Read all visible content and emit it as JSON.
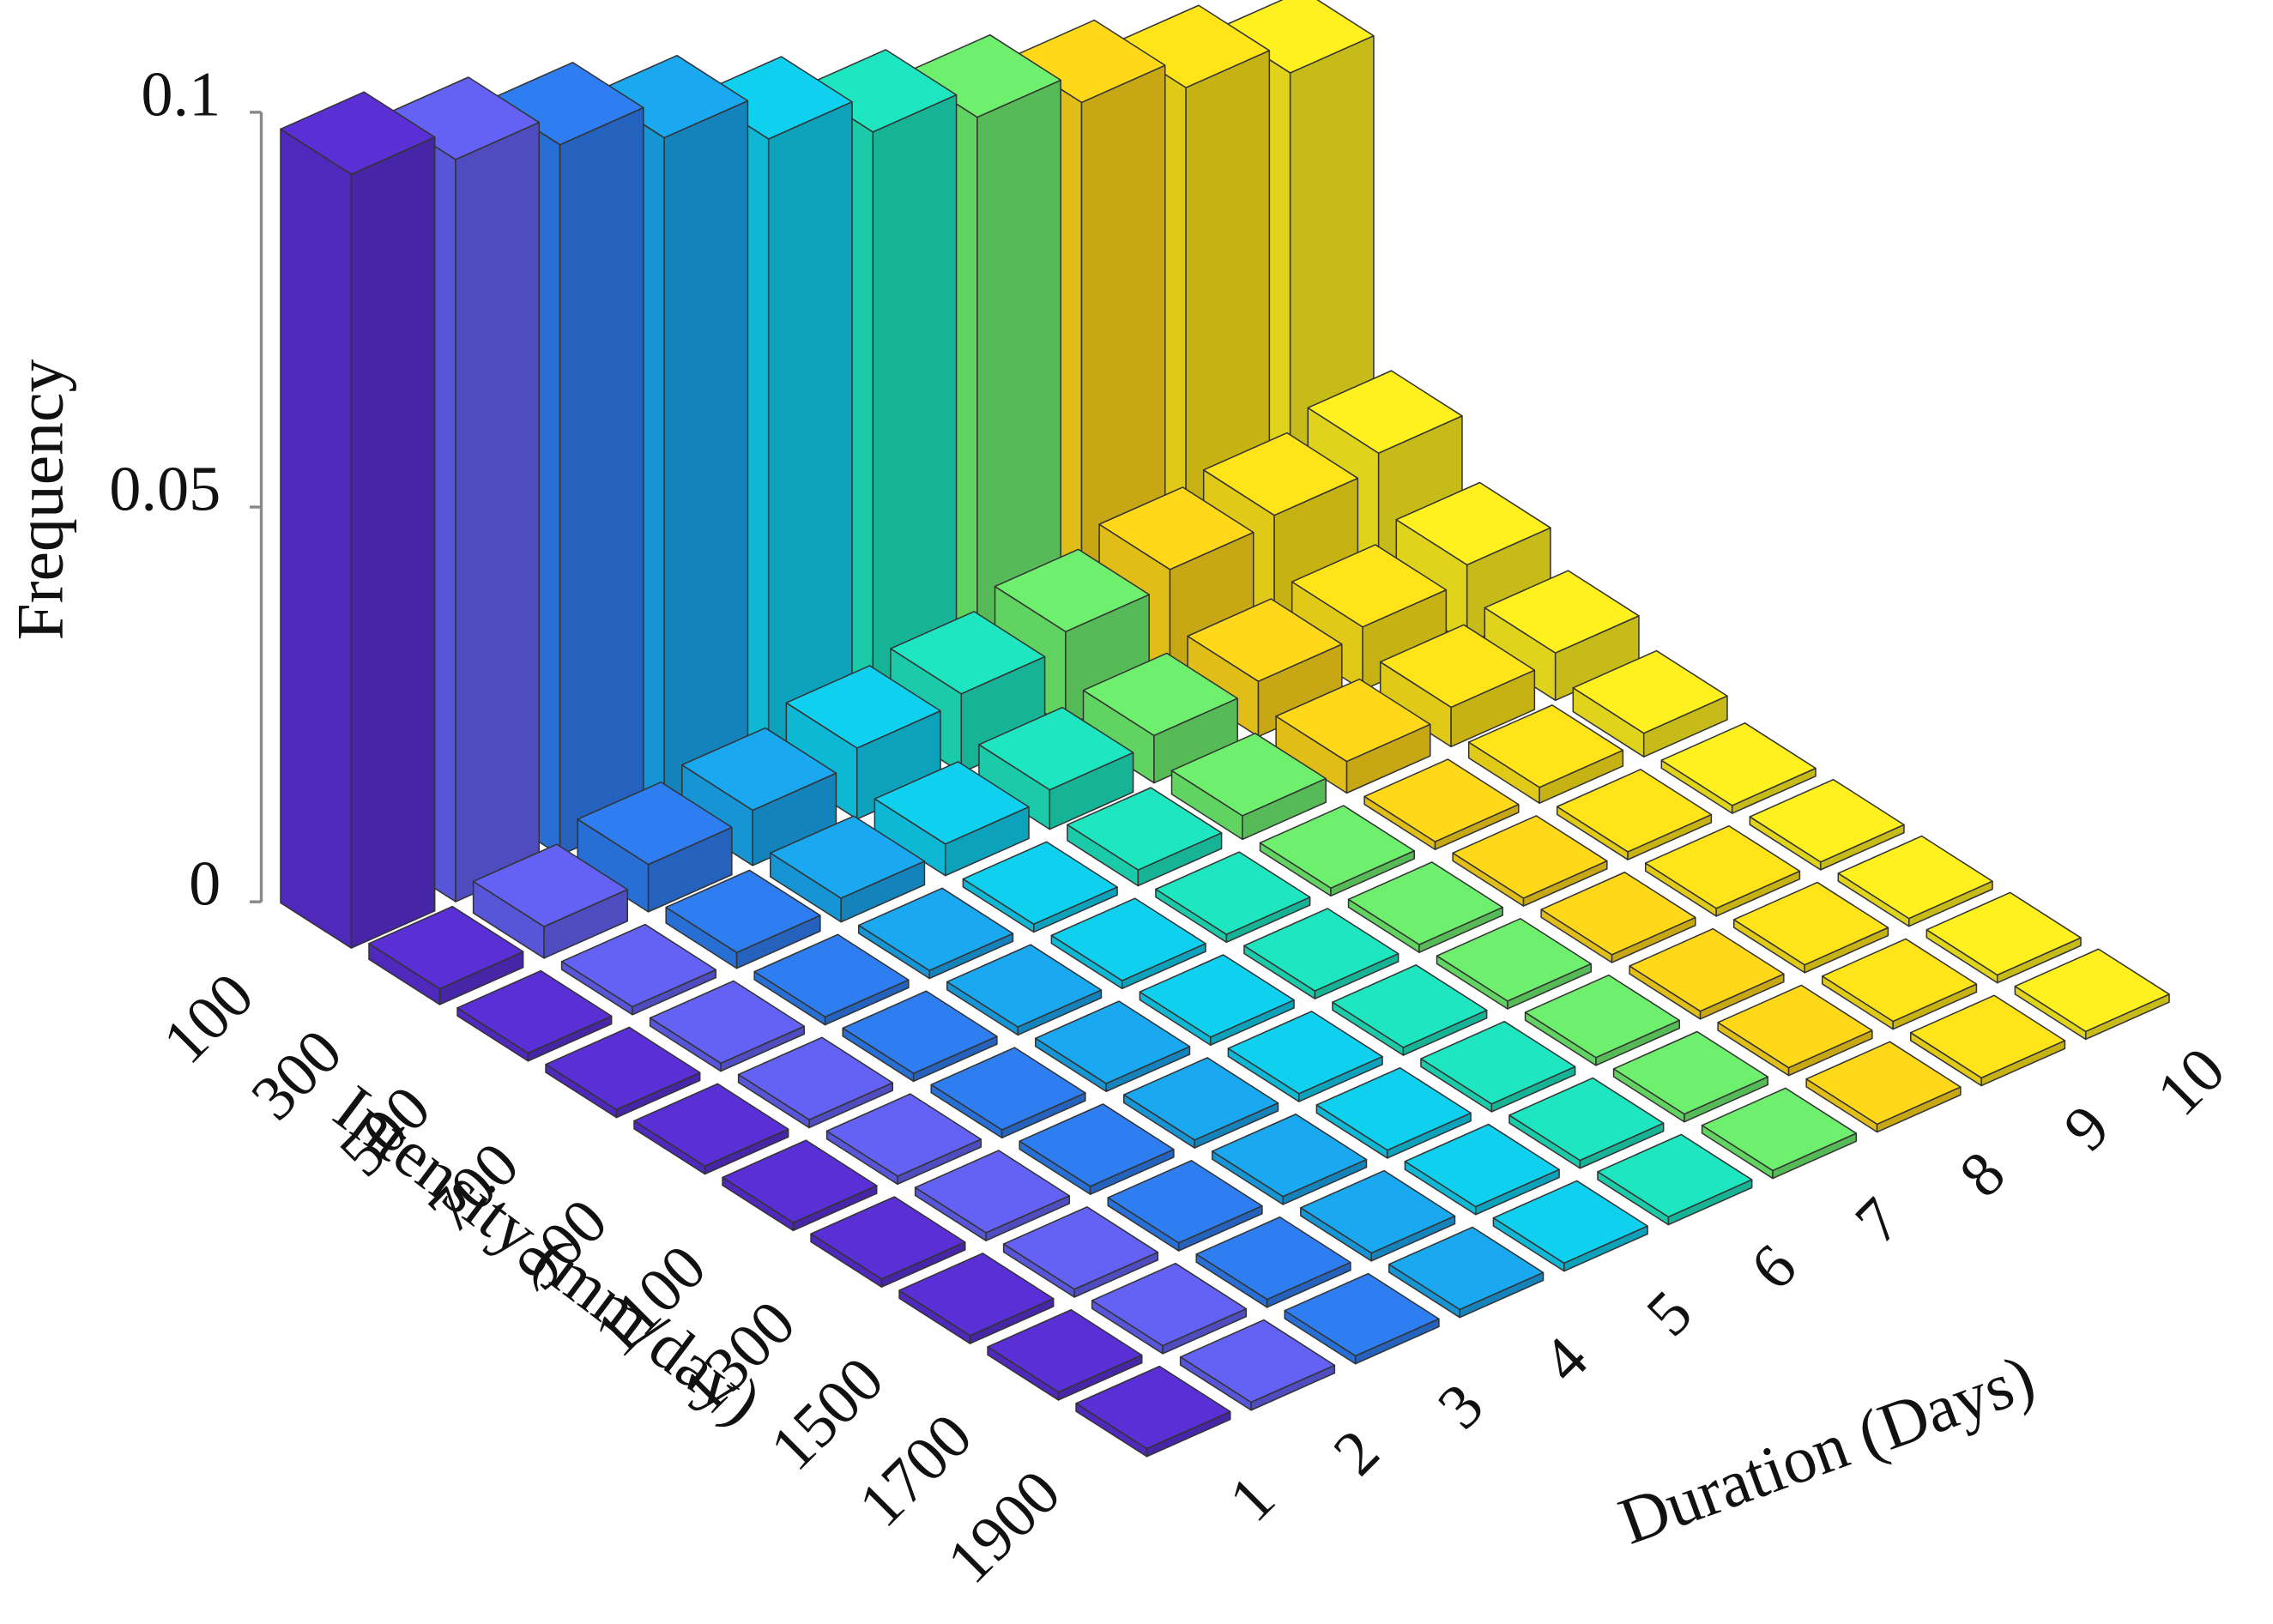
{
  "chart_data": {
    "type": "bar3d",
    "x_label": "Duration (Days)",
    "y_label": "Intensity (mm/day)",
    "z_label": "Frequency",
    "x_categories": [
      "1",
      "2",
      "3",
      "4",
      "5",
      "6",
      "7",
      "8",
      "9",
      "10"
    ],
    "y_categories": [
      "100",
      "300",
      "500",
      "700",
      "900",
      "1100",
      "1300",
      "1500",
      "1700",
      "1900"
    ],
    "colors": [
      "#5a2fd6",
      "#6462f5",
      "#2e7ef2",
      "#1aa8f0",
      "#10d0f0",
      "#1de6c0",
      "#6ef06e",
      "#ffd81a",
      "#ffe41a",
      "#fff020"
    ],
    "values": [
      [
        0.098,
        0.094,
        0.09,
        0.085,
        0.079,
        0.074,
        0.07,
        0.066,
        0.062,
        0.058
      ],
      [
        0.002,
        0.004,
        0.006,
        0.007,
        0.009,
        0.01,
        0.012,
        0.014,
        0.015,
        0.017
      ],
      [
        0.001,
        0.001,
        0.002,
        0.003,
        0.004,
        0.005,
        0.006,
        0.007,
        0.008,
        0.01
      ],
      [
        0.001,
        0.001,
        0.001,
        0.001,
        0.001,
        0.002,
        0.003,
        0.004,
        0.005,
        0.006
      ],
      [
        0.001,
        0.001,
        0.001,
        0.001,
        0.001,
        0.001,
        0.001,
        0.001,
        0.002,
        0.003
      ],
      [
        0.001,
        0.001,
        0.001,
        0.001,
        0.001,
        0.001,
        0.001,
        0.001,
        0.001,
        0.001
      ],
      [
        0.001,
        0.001,
        0.001,
        0.001,
        0.001,
        0.001,
        0.001,
        0.001,
        0.001,
        0.001
      ],
      [
        0.001,
        0.001,
        0.001,
        0.001,
        0.001,
        0.001,
        0.001,
        0.001,
        0.001,
        0.001
      ],
      [
        0.001,
        0.001,
        0.001,
        0.001,
        0.001,
        0.001,
        0.001,
        0.001,
        0.001,
        0.001
      ],
      [
        0.001,
        0.001,
        0.001,
        0.001,
        0.001,
        0.001,
        0.001,
        0.001,
        0.001,
        0.001
      ]
    ],
    "zlim": [
      0,
      0.1
    ],
    "zticks": [
      0,
      0.05,
      0.1
    ]
  }
}
